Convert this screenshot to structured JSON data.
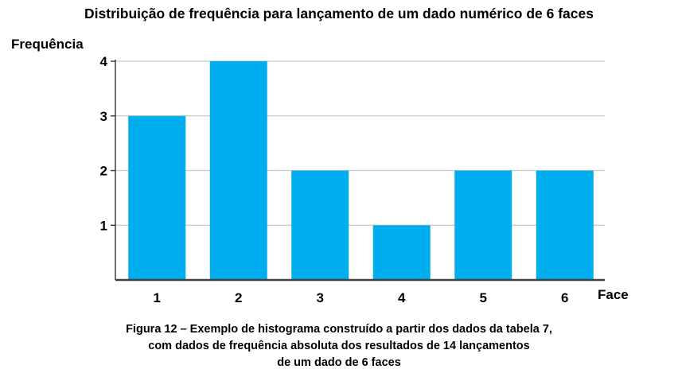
{
  "chart_data": {
    "type": "bar",
    "title": "Distribuição de frequência para lançamento de um dado numérico de 6 faces",
    "xlabel": "Face",
    "ylabel": "Frequência",
    "categories": [
      "1",
      "2",
      "3",
      "4",
      "5",
      "6"
    ],
    "values": [
      3,
      4,
      2,
      1,
      2,
      2
    ],
    "yticks": [
      "1",
      "2",
      "3",
      "4"
    ],
    "ylim": [
      0,
      4
    ],
    "grid": true,
    "legend": "none",
    "bar_color": "#00ADEF",
    "grid_color": "#C8C8C8",
    "axis_color": "#404040"
  },
  "caption": {
    "lines": [
      "Figura 12 – Exemplo de histograma construído a partir dos dados da tabela 7,",
      "com dados de frequência absoluta dos resultados de 14 lançamentos",
      "de um dado de 6 faces"
    ]
  }
}
